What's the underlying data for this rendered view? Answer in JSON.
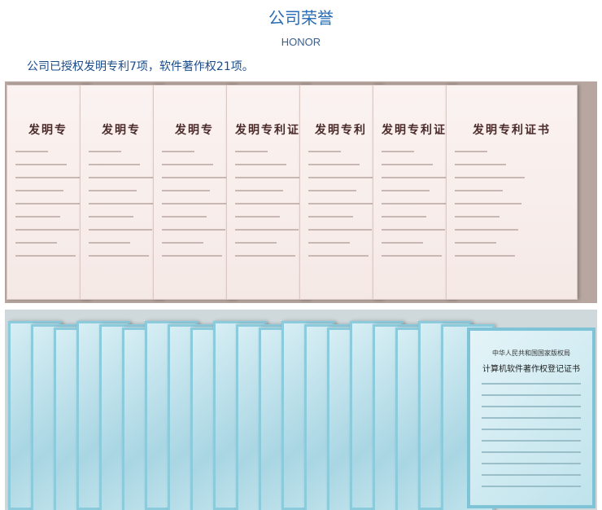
{
  "header": {
    "title": "公司荣誉",
    "subtitle": "HONOR",
    "intro": "公司已授权发明专利7项，软件著作权21项。"
  },
  "patents": [
    "发明专",
    "发明专",
    "发明专",
    "发明专利证",
    "发明专利",
    "发明专利证",
    "发明专利证书"
  ],
  "software": {
    "issuer": "中华人民共和国国家版权局",
    "heading": "计算机软件著作权登记证书"
  }
}
